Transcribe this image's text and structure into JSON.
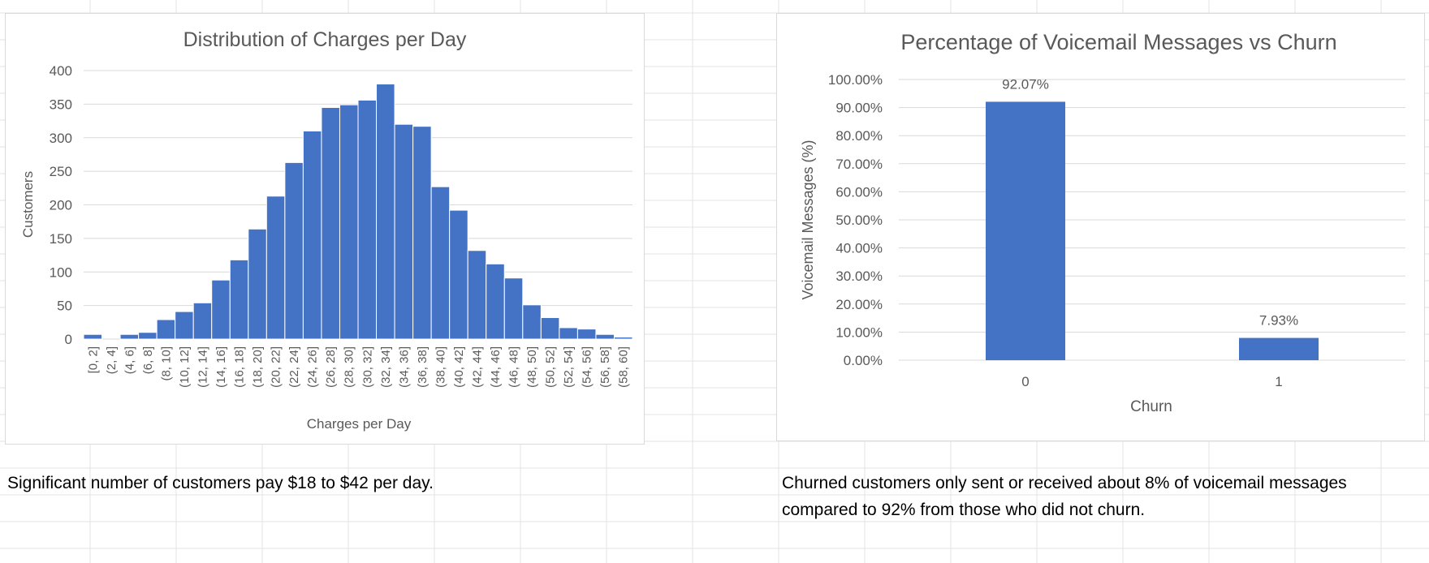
{
  "colors": {
    "bar": "#4472c4",
    "gridline": "#d9d9d9",
    "title_text": "#595959",
    "axis_text": "#595959",
    "cell_border": "#e3e3e3"
  },
  "chart_data": [
    {
      "type": "bar",
      "title": "Distribution of Charges per Day",
      "xlabel": "Charges per Day",
      "ylabel": "Customers",
      "ylim": [
        0,
        400
      ],
      "yticks": [
        "0",
        "50",
        "100",
        "150",
        "200",
        "250",
        "300",
        "350",
        "400"
      ],
      "grid": true,
      "legend": "none",
      "categories": [
        "[0, 2]",
        "(2, 4]",
        "(4, 6]",
        "(6, 8]",
        "(8, 10]",
        "(10, 12]",
        "(12, 14]",
        "(14, 16]",
        "(16, 18]",
        "(18, 20]",
        "(20, 22]",
        "(22, 24]",
        "(24, 26]",
        "(26, 28]",
        "(28, 30]",
        "(30, 32]",
        "(32, 34]",
        "(34, 36]",
        "(36, 38]",
        "(38, 40]",
        "(40, 42]",
        "(42, 44]",
        "(44, 46]",
        "(46, 48]",
        "(48, 50]",
        "(50, 52]",
        "(52, 54]",
        "(54, 56]",
        "(56, 58]",
        "(58, 60]"
      ],
      "values": [
        7,
        0,
        7,
        10,
        29,
        41,
        54,
        88,
        118,
        164,
        213,
        263,
        310,
        345,
        349,
        356,
        380,
        320,
        317,
        227,
        192,
        132,
        112,
        91,
        51,
        32,
        17,
        15,
        7,
        3
      ]
    },
    {
      "type": "bar",
      "title": "Percentage of Voicemail  Messages vs Churn",
      "xlabel": "Churn",
      "ylabel": "Voicemail Messages (%)",
      "ylim": [
        0,
        100
      ],
      "yticks": [
        "0.00%",
        "10.00%",
        "20.00%",
        "30.00%",
        "40.00%",
        "50.00%",
        "60.00%",
        "70.00%",
        "80.00%",
        "90.00%",
        "100.00%"
      ],
      "grid": true,
      "legend": "none",
      "categories": [
        "0",
        "1"
      ],
      "values": [
        92.07,
        7.93
      ],
      "data_labels": [
        "92.07%",
        "7.93%"
      ]
    }
  ],
  "notes": {
    "left": "Significant number of customers pay $18 to $42 per day.",
    "right_line1": "Churned customers only sent or received about 8% of voicemail messages",
    "right_line2": "compared to 92% from those who did not churn."
  }
}
